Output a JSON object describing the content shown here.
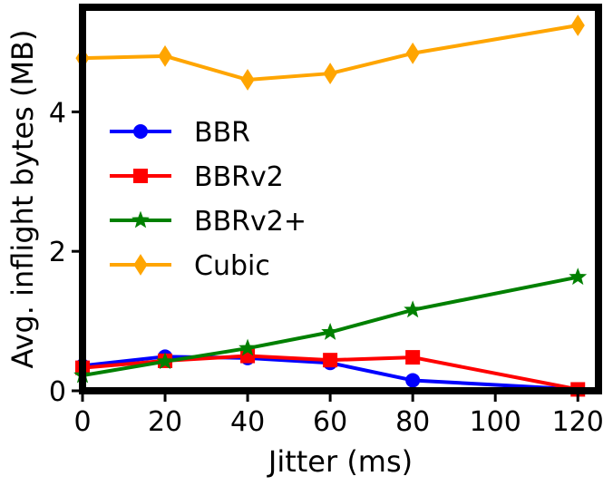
{
  "chart_data": {
    "type": "line",
    "title": "",
    "xlabel": "Jitter (ms)",
    "ylabel": "Avg. inflight bytes (MB)",
    "xlim": [
      0,
      125
    ],
    "ylim": [
      0,
      5.5
    ],
    "xticks": [
      0,
      20,
      40,
      60,
      80,
      100,
      120
    ],
    "yticks": [
      0,
      2,
      4
    ],
    "grid": false,
    "legend_position": "center-left",
    "series": [
      {
        "name": "BBR",
        "color": "#0000ff",
        "marker": "circle",
        "x": [
          0,
          20,
          40,
          60,
          80,
          120
        ],
        "y": [
          0.36,
          0.49,
          0.47,
          0.4,
          0.15,
          0.02
        ]
      },
      {
        "name": "BBRv2",
        "color": "#ff0000",
        "marker": "square",
        "x": [
          0,
          20,
          40,
          60,
          80,
          120
        ],
        "y": [
          0.33,
          0.43,
          0.5,
          0.44,
          0.48,
          0.02
        ]
      },
      {
        "name": "BBRv2+",
        "color": "#008000",
        "marker": "star",
        "x": [
          0,
          20,
          40,
          60,
          80,
          120
        ],
        "y": [
          0.22,
          0.42,
          0.61,
          0.84,
          1.16,
          1.63
        ]
      },
      {
        "name": "Cubic",
        "color": "#ffa500",
        "marker": "diamond",
        "x": [
          0,
          20,
          40,
          60,
          80,
          120
        ],
        "y": [
          4.77,
          4.8,
          4.46,
          4.55,
          4.84,
          5.24
        ]
      }
    ]
  }
}
